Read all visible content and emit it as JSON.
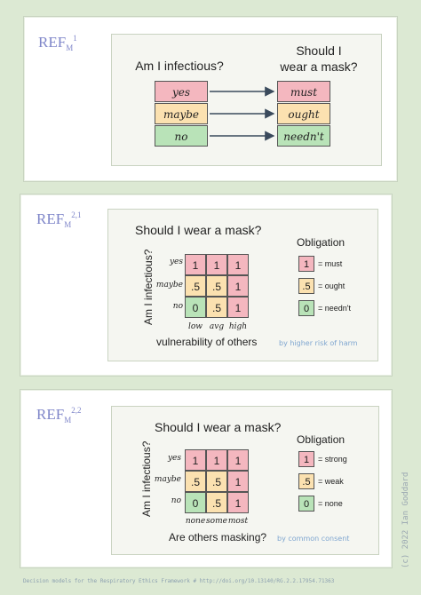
{
  "panel1": {
    "ref_base": "REF",
    "ref_sub": "M",
    "ref_sup": "1",
    "question_left": "Am I infectious?",
    "question_right_1": "Should I",
    "question_right_2": "wear a mask?",
    "inputs": [
      "yes",
      "maybe",
      "no"
    ],
    "outputs": [
      "must",
      "ought",
      "needn't"
    ]
  },
  "panel2": {
    "ref_base": "REF",
    "ref_sub": "M",
    "ref_sup": "2,1",
    "title": "Should I wear a mask?",
    "y_axis": "Am I infectious?",
    "x_axis": "vulnerability of others",
    "rows": [
      "yes",
      "maybe",
      "no"
    ],
    "cols": [
      "low",
      "avg",
      "high"
    ],
    "matrix": [
      [
        "1",
        "1",
        "1"
      ],
      [
        ".5",
        ".5",
        "1"
      ],
      [
        "0",
        ".5",
        "1"
      ]
    ],
    "legend_title": "Obligation",
    "legend": [
      {
        "val": "1",
        "label": "= must"
      },
      {
        "val": ".5",
        "label": "= ought"
      },
      {
        "val": "0",
        "label": "= needn't"
      }
    ],
    "note": "by higher risk of harm"
  },
  "panel3": {
    "ref_base": "REF",
    "ref_sub": "M",
    "ref_sup": "2,2",
    "title": "Should I wear a mask?",
    "y_axis": "Am I infectious?",
    "x_axis": "Are others masking?",
    "rows": [
      "yes",
      "maybe",
      "no"
    ],
    "cols": [
      "none",
      "some",
      "most"
    ],
    "matrix": [
      [
        "1",
        "1",
        "1"
      ],
      [
        ".5",
        ".5",
        "1"
      ],
      [
        "0",
        ".5",
        "1"
      ]
    ],
    "legend_title": "Obligation",
    "legend": [
      {
        "val": "1",
        "label": "= strong"
      },
      {
        "val": ".5",
        "label": "= weak"
      },
      {
        "val": "0",
        "label": "= none"
      }
    ],
    "note": "by common consent"
  },
  "footer": "Decision models for the Respiratory Ethics Framework # http://doi.org/10.13140/RG.2.2.17954.71363",
  "copyright": "(c) 2022 Ian Goddard",
  "colors": {
    "red": "#f4b7bf",
    "yellow": "#fbe1b0",
    "green": "#b9e3b8",
    "ref": "#7f86c9"
  }
}
